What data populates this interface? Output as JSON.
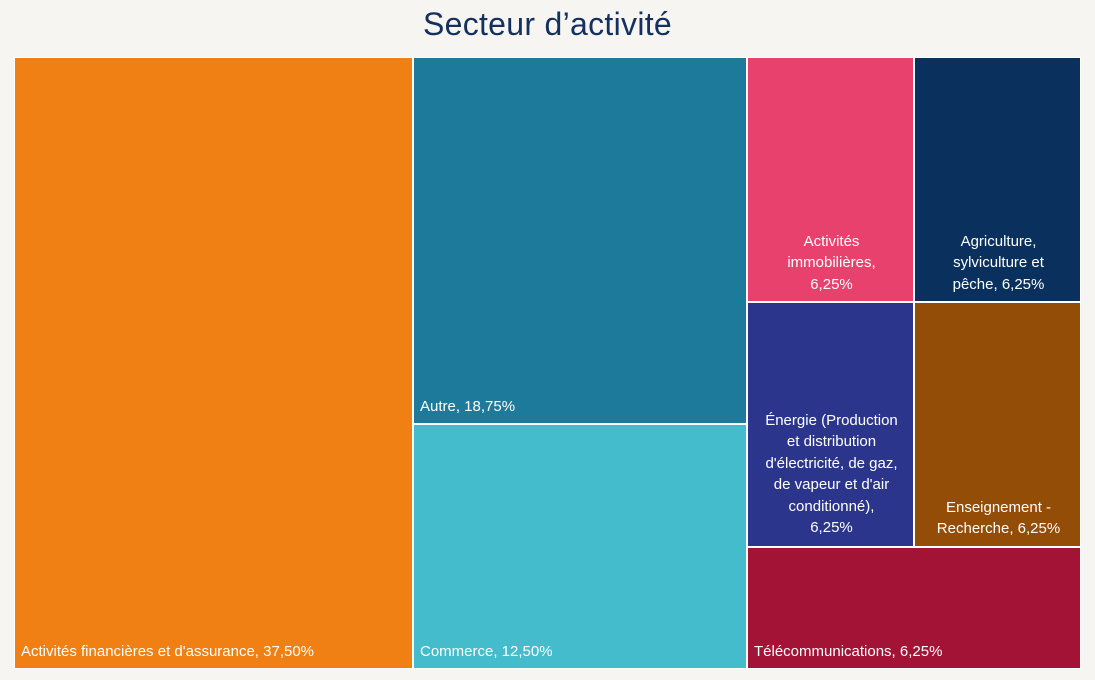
{
  "chart_data": {
    "type": "treemap",
    "title": "Secteur d’activité",
    "items": [
      {
        "category": "Activités financières et d'assurance",
        "value": 37.5,
        "label_lines": [
          "Activités financières et d'assurance, 37,50%"
        ],
        "color": "#f07f14"
      },
      {
        "category": "Autre",
        "value": 18.75,
        "label_lines": [
          "Autre, 18,75%"
        ],
        "color": "#1e7a9a"
      },
      {
        "category": "Commerce",
        "value": 12.5,
        "label_lines": [
          "Commerce, 12,50%"
        ],
        "color": "#44bccb"
      },
      {
        "category": "Activités immobilières",
        "value": 6.25,
        "label_lines": [
          "Activités",
          "immobilières,",
          "6,25%"
        ],
        "color": "#e8416e"
      },
      {
        "category": "Agriculture, sylviculture et pêche",
        "value": 6.25,
        "label_lines": [
          "Agriculture,",
          "sylviculture et",
          "pêche, 6,25%"
        ],
        "color": "#0a315e"
      },
      {
        "category": "Énergie (Production et distribution d'électricité, de gaz, de vapeur et d'air conditionné)",
        "value": 6.25,
        "label_lines": [
          "Énergie (Production",
          "et distribution",
          "d'électricité, de gaz,",
          "de vapeur et d'air",
          "conditionné),",
          "6,25%"
        ],
        "color": "#2b358b"
      },
      {
        "category": "Enseignement - Recherche",
        "value": 6.25,
        "label_lines": [
          "Enseignement -",
          "Recherche, 6,25%"
        ],
        "color": "#934d06"
      },
      {
        "category": "Télécommunications",
        "value": 6.25,
        "label_lines": [
          "Télécommunications, 6,25%"
        ],
        "color": "#a21336"
      }
    ]
  }
}
